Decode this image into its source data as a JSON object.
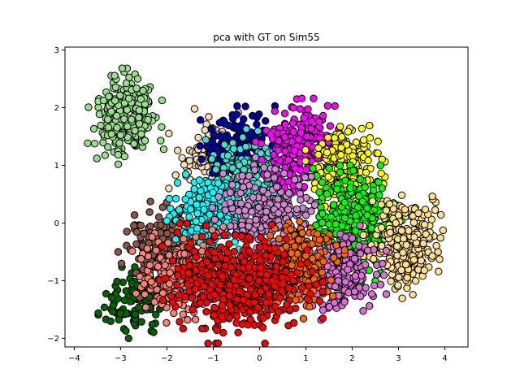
{
  "chart_data": {
    "type": "scatter",
    "title": "pca with GT on Sim55",
    "xlabel": "",
    "ylabel": "",
    "xlim": [
      -4.2,
      4.5
    ],
    "ylim": [
      -2.15,
      3.05
    ],
    "xticks": [
      -4,
      -3,
      -2,
      -1,
      0,
      1,
      2,
      3,
      4
    ],
    "yticks": [
      -2,
      -1,
      0,
      1,
      2,
      3
    ],
    "grid": false,
    "legend": "none",
    "marker_edge_color": "#000000",
    "clusters": [
      {
        "color": "#98df8a",
        "center": [
          -2.9,
          1.85
        ],
        "spread": [
          0.32,
          0.32
        ],
        "count": 260
      },
      {
        "color": "#006400",
        "center": [
          -2.7,
          -1.35
        ],
        "spread": [
          0.3,
          0.25
        ],
        "count": 120
      },
      {
        "color": "#8c564b",
        "center": [
          -2.15,
          -0.45
        ],
        "spread": [
          0.38,
          0.35
        ],
        "count": 170
      },
      {
        "color": "#f5deb3",
        "center": [
          -1.1,
          1.2
        ],
        "spread": [
          0.33,
          0.3
        ],
        "count": 110
      },
      {
        "color": "#0000aa",
        "center": [
          -0.5,
          1.3
        ],
        "spread": [
          0.32,
          0.28
        ],
        "count": 170
      },
      {
        "color": "#40e0d0",
        "center": [
          -0.25,
          0.85
        ],
        "spread": [
          0.35,
          0.3
        ],
        "count": 200
      },
      {
        "color": "#00ffff",
        "center": [
          -1.1,
          0.15
        ],
        "spread": [
          0.35,
          0.3
        ],
        "count": 190
      },
      {
        "color": "#ff00ff",
        "center": [
          0.9,
          1.25
        ],
        "spread": [
          0.38,
          0.35
        ],
        "count": 280
      },
      {
        "color": "#ffff00",
        "center": [
          1.85,
          0.95
        ],
        "spread": [
          0.33,
          0.32
        ],
        "count": 230
      },
      {
        "color": "#00ff00",
        "center": [
          2.0,
          0.0
        ],
        "spread": [
          0.42,
          0.42
        ],
        "count": 300
      },
      {
        "color": "#ffe08a",
        "center": [
          3.15,
          -0.35
        ],
        "spread": [
          0.35,
          0.4
        ],
        "count": 260
      },
      {
        "color": "#cc88cc",
        "center": [
          0.15,
          0.15
        ],
        "spread": [
          0.45,
          0.38
        ],
        "count": 240
      },
      {
        "color": "#da70d6",
        "center": [
          1.75,
          -0.85
        ],
        "spread": [
          0.38,
          0.32
        ],
        "count": 200
      },
      {
        "color": "#ff6600",
        "center": [
          0.85,
          -0.75
        ],
        "spread": [
          0.38,
          0.35
        ],
        "count": 230
      },
      {
        "color": "#fa8072",
        "center": [
          -1.7,
          -0.9
        ],
        "spread": [
          0.42,
          0.32
        ],
        "count": 220
      },
      {
        "color": "#ff0000",
        "center": [
          -0.4,
          -1.05
        ],
        "spread": [
          0.68,
          0.4
        ],
        "count": 520
      }
    ]
  }
}
